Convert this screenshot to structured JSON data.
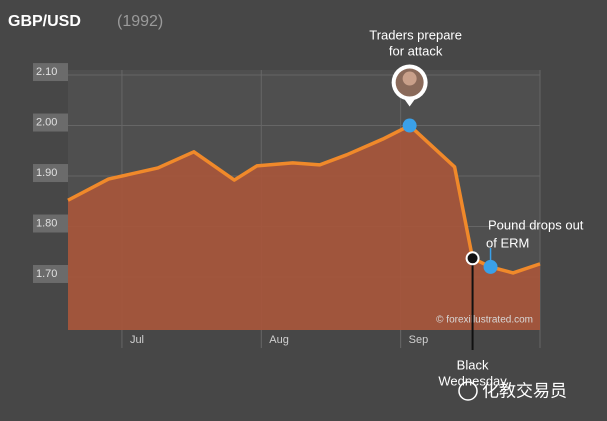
{
  "chart_data": {
    "type": "area",
    "title": "GBP/USD",
    "subtitle": "(1992)",
    "x": [
      170,
      179,
      190,
      198,
      207,
      212,
      220,
      226,
      232,
      240,
      246,
      256,
      260,
      264,
      269,
      275
    ],
    "series": [
      {
        "name": "GBP/USD",
        "color": "#f0892a",
        "fill": "#a8553a",
        "values": [
          1.852,
          1.894,
          1.916,
          1.948,
          1.892,
          1.92,
          1.926,
          1.922,
          1.942,
          1.973,
          2.0,
          1.918,
          1.737,
          1.72,
          1.708,
          1.726
        ]
      }
    ],
    "xlim": [
      170,
      275
    ],
    "xticks": [
      {
        "value": 182,
        "label": "Jul"
      },
      {
        "value": 213,
        "label": "Aug"
      },
      {
        "value": 244,
        "label": "Sep"
      }
    ],
    "ylim": [
      1.595,
      2.11
    ],
    "yticks": [
      {
        "value": 2.1,
        "label": "2.10"
      },
      {
        "value": 2.0,
        "label": "2.00"
      },
      {
        "value": 1.9,
        "label": "1.90"
      },
      {
        "value": 1.8,
        "label": "1.80"
      },
      {
        "value": 1.7,
        "label": "1.70"
      }
    ],
    "grid": true,
    "annotations": [
      {
        "text": [
          "Traders prepare",
          "for attack"
        ]
      },
      {
        "text": [
          "Black",
          "Wednesday"
        ]
      },
      {
        "text": [
          "Pound drops out",
          "of ERM"
        ]
      }
    ],
    "source": "© forexillustrated.com",
    "watermark": "化教交易员"
  }
}
